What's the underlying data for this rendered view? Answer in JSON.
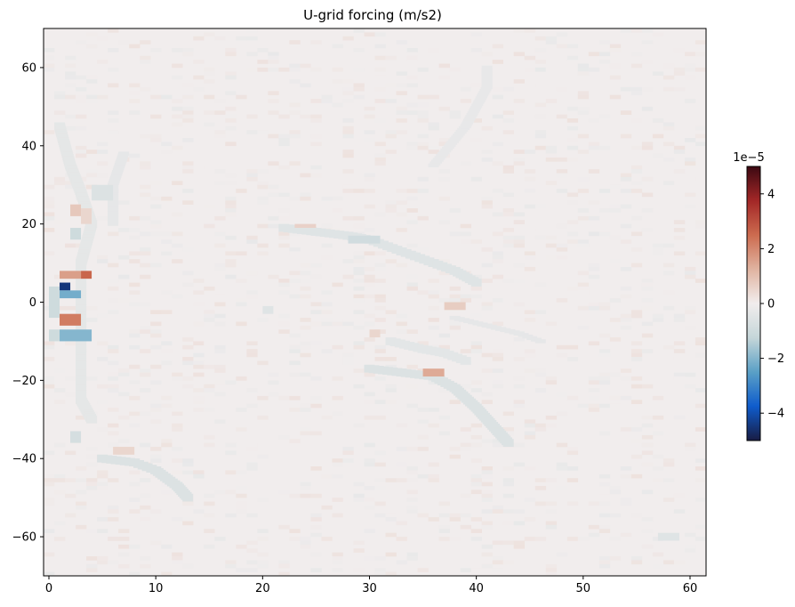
{
  "chart_data": {
    "type": "heatmap",
    "title": "U-grid forcing (m/s2)",
    "xlabel": "",
    "ylabel": "",
    "xlim": [
      -0.5,
      61.5
    ],
    "ylim": [
      -70,
      70
    ],
    "xticks": [
      0,
      10,
      20,
      30,
      40,
      50,
      60
    ],
    "yticks": [
      -60,
      -40,
      -20,
      0,
      20,
      40,
      60
    ],
    "colorbar": {
      "range": [
        -5,
        5
      ],
      "ticks": [
        -4,
        -2,
        0,
        2,
        4
      ],
      "offset_label": "1e−5",
      "colormap": "balance",
      "colors": [
        "#181c43",
        "#0f5ccc",
        "#5aa0c6",
        "#c5d6d9",
        "#f1eded",
        "#e0b3a0",
        "#cc6b4f",
        "#a32727",
        "#3c0912"
      ]
    },
    "grid": false,
    "grid_cells": {
      "x_count": 62,
      "y_count": 140,
      "background_value": 0
    },
    "features": [
      {
        "x": [
          1,
          2
        ],
        "y": [
          3,
          5
        ],
        "value": -4.5
      },
      {
        "x": [
          1,
          3
        ],
        "y": [
          1,
          3
        ],
        "value": -2.2
      },
      {
        "x": [
          0,
          1
        ],
        "y": [
          -4,
          4
        ],
        "value": -1.0
      },
      {
        "x": [
          1,
          3
        ],
        "y": [
          6,
          8
        ],
        "value": 1.6
      },
      {
        "x": [
          3,
          4
        ],
        "y": [
          6,
          8
        ],
        "value": 2.6
      },
      {
        "x": [
          1,
          3
        ],
        "y": [
          -6,
          -3
        ],
        "value": 2.2
      },
      {
        "x": [
          1,
          4
        ],
        "y": [
          -10,
          -7
        ],
        "value": -2.0
      },
      {
        "x": [
          0,
          1
        ],
        "y": [
          -10,
          -7
        ],
        "value": -1.0
      },
      {
        "x": [
          2,
          3
        ],
        "y": [
          16,
          19
        ],
        "value": -1.0
      },
      {
        "x": [
          2,
          3
        ],
        "y": [
          22,
          25
        ],
        "value": 0.8
      },
      {
        "x": [
          3,
          4
        ],
        "y": [
          20,
          24
        ],
        "value": 0.5
      },
      {
        "x": [
          2,
          3
        ],
        "y": [
          -36,
          -33
        ],
        "value": -0.8
      },
      {
        "x": [
          4,
          6
        ],
        "y": [
          26,
          30
        ],
        "value": -0.6
      },
      {
        "x": [
          28,
          31
        ],
        "y": [
          15,
          17
        ],
        "value": -0.9
      },
      {
        "x": [
          23,
          25
        ],
        "y": [
          19,
          20
        ],
        "value": 0.6
      },
      {
        "x": [
          35,
          37
        ],
        "y": [
          -19,
          -17
        ],
        "value": 1.4
      },
      {
        "x": [
          37,
          39
        ],
        "y": [
          -2,
          0
        ],
        "value": 0.7
      },
      {
        "x": [
          30,
          31
        ],
        "y": [
          -9,
          -7
        ],
        "value": 0.5
      },
      {
        "x": [
          20,
          21
        ],
        "y": [
          -3,
          -1
        ],
        "value": -0.5
      },
      {
        "x": [
          6,
          8
        ],
        "y": [
          -39,
          -37
        ],
        "value": 0.5
      },
      {
        "x": [
          57,
          59
        ],
        "y": [
          -61,
          -59
        ],
        "value": -0.5
      }
    ],
    "tracks": [
      {
        "points": [
          [
            22,
            19
          ],
          [
            25,
            18
          ],
          [
            28,
            17
          ],
          [
            30,
            16
          ],
          [
            33,
            13
          ],
          [
            36,
            10
          ],
          [
            38,
            8
          ],
          [
            40,
            5
          ]
        ],
        "value": -0.5,
        "width": 2
      },
      {
        "points": [
          [
            30,
            -17
          ],
          [
            33,
            -18
          ],
          [
            36,
            -19
          ],
          [
            38,
            -22
          ],
          [
            40,
            -27
          ],
          [
            42,
            -33
          ],
          [
            43,
            -36
          ]
        ],
        "value": -0.6,
        "width": 2
      },
      {
        "points": [
          [
            32,
            -10
          ],
          [
            35,
            -12
          ],
          [
            37,
            -13
          ],
          [
            39,
            -15
          ]
        ],
        "value": -0.4,
        "width": 2
      },
      {
        "points": [
          [
            5,
            -40
          ],
          [
            8,
            -41
          ],
          [
            10,
            -43
          ],
          [
            12,
            -47
          ],
          [
            13,
            -50
          ]
        ],
        "value": -0.6,
        "width": 2
      },
      {
        "points": [
          [
            1,
            45
          ],
          [
            2,
            35
          ],
          [
            3,
            28
          ],
          [
            4,
            20
          ],
          [
            3,
            10
          ],
          [
            3,
            -12
          ],
          [
            3,
            -25
          ],
          [
            4,
            -30
          ]
        ],
        "value": -0.35,
        "width": 2
      },
      {
        "points": [
          [
            6,
            20
          ],
          [
            6,
            30
          ],
          [
            7,
            38
          ]
        ],
        "value": -0.3,
        "width": 1
      },
      {
        "points": [
          [
            36,
            35
          ],
          [
            39,
            45
          ],
          [
            41,
            55
          ],
          [
            41,
            60
          ]
        ],
        "value": -0.25,
        "width": 1
      },
      {
        "points": [
          [
            38,
            -4
          ],
          [
            41,
            -6
          ],
          [
            44,
            -8
          ],
          [
            46,
            -10
          ]
        ],
        "value": -0.3,
        "width": 1
      }
    ]
  }
}
